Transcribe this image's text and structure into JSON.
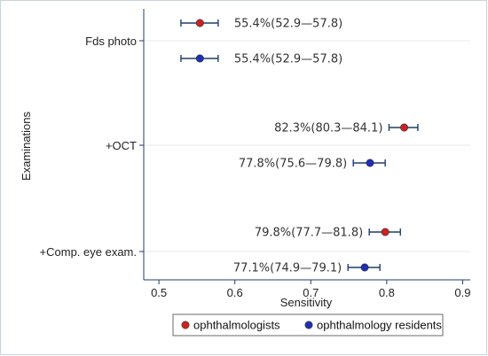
{
  "chart_data": {
    "type": "scatter",
    "subtype": "forest-plot-with-confidence-intervals",
    "ylabel": "Examinations",
    "xlabel": "Sensitivity",
    "xlim": [
      0.48,
      0.91
    ],
    "x_ticks": [
      "0.5",
      "0.6",
      "0.7",
      "0.8",
      "0.9"
    ],
    "categories": [
      "Fds photo",
      "+OCT",
      "+Comp. eye exam."
    ],
    "grid": "horizontal",
    "series": [
      {
        "name": "ophthalmologists",
        "color": "#cc2222",
        "points": [
          {
            "category": "Fds photo",
            "value": 0.554,
            "low": 0.529,
            "high": 0.578,
            "label": "55.4%(52.9—57.8)"
          },
          {
            "category": "+OCT",
            "value": 0.823,
            "low": 0.803,
            "high": 0.841,
            "label": "82.3%(80.3—84.1)"
          },
          {
            "category": "+Comp. eye exam.",
            "value": 0.798,
            "low": 0.777,
            "high": 0.818,
            "label": "79.8%(77.7—81.8)"
          }
        ]
      },
      {
        "name": "ophthalmology residents",
        "color": "#1f2fb5",
        "points": [
          {
            "category": "Fds photo",
            "value": 0.554,
            "low": 0.529,
            "high": 0.578,
            "label": "55.4%(52.9—57.8)"
          },
          {
            "category": "+OCT",
            "value": 0.778,
            "low": 0.756,
            "high": 0.798,
            "label": "77.8%(75.6—79.8)"
          },
          {
            "category": "+Comp. eye exam.",
            "value": 0.771,
            "low": 0.749,
            "high": 0.791,
            "label": "77.1%(74.9—79.1)"
          }
        ]
      }
    ],
    "legend": {
      "position": "bottom",
      "entries": [
        "ophthalmologists",
        "ophthalmology residents"
      ]
    },
    "axis_color": "#1f3f6a",
    "error_bar_color": "#1f3f6a"
  }
}
